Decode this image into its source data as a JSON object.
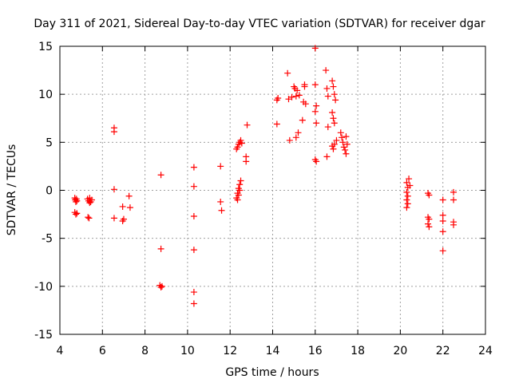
{
  "chart_data": {
    "type": "scatter",
    "title": "Day 311 of 2021, Sidereal Day-to-day VTEC variation (SDTVAR) for receiver dgar",
    "xlabel": "GPS time / hours",
    "ylabel": "SDTVAR / TECUs",
    "xlim": [
      4,
      24
    ],
    "ylim": [
      -15,
      15
    ],
    "xticks": [
      4,
      6,
      8,
      10,
      12,
      14,
      16,
      18,
      20,
      22,
      24
    ],
    "yticks": [
      -15,
      -10,
      -5,
      0,
      5,
      10,
      15
    ],
    "grid": true,
    "marker": "+",
    "color": "#ff0000",
    "series": [
      {
        "name": "SDTVAR",
        "points": [
          [
            4.7,
            -0.8
          ],
          [
            4.72,
            -1.0
          ],
          [
            4.75,
            -1.2
          ],
          [
            4.78,
            -0.9
          ],
          [
            4.8,
            -1.1
          ],
          [
            4.7,
            -2.3
          ],
          [
            4.75,
            -2.5
          ],
          [
            4.8,
            -2.4
          ],
          [
            5.3,
            -0.9
          ],
          [
            5.35,
            -1.1
          ],
          [
            5.4,
            -0.8
          ],
          [
            5.45,
            -1.2
          ],
          [
            5.5,
            -1.0
          ],
          [
            5.32,
            -2.8
          ],
          [
            5.37,
            -2.9
          ],
          [
            5.4,
            -1.3
          ],
          [
            6.55,
            6.5
          ],
          [
            6.55,
            6.1
          ],
          [
            6.55,
            0.1
          ],
          [
            6.55,
            -2.9
          ],
          [
            6.95,
            -1.7
          ],
          [
            7.0,
            -3.0
          ],
          [
            6.95,
            -3.2
          ],
          [
            7.25,
            -0.6
          ],
          [
            7.3,
            -1.8
          ],
          [
            8.75,
            1.6
          ],
          [
            8.75,
            -6.1
          ],
          [
            8.7,
            -9.9
          ],
          [
            8.75,
            -10.1
          ],
          [
            8.8,
            -10.0
          ],
          [
            10.3,
            2.4
          ],
          [
            10.3,
            0.4
          ],
          [
            10.3,
            -2.7
          ],
          [
            10.3,
            -6.2
          ],
          [
            10.3,
            -10.6
          ],
          [
            10.3,
            -11.8
          ],
          [
            11.55,
            2.5
          ],
          [
            11.55,
            -1.2
          ],
          [
            11.6,
            -2.1
          ],
          [
            12.3,
            -0.8
          ],
          [
            12.35,
            -0.3
          ],
          [
            12.4,
            0.2
          ],
          [
            12.45,
            0.6
          ],
          [
            12.5,
            1.0
          ],
          [
            12.35,
            -1.0
          ],
          [
            12.4,
            -0.5
          ],
          [
            12.45,
            0.0
          ],
          [
            12.3,
            4.3
          ],
          [
            12.35,
            4.5
          ],
          [
            12.4,
            4.8
          ],
          [
            12.45,
            5.0
          ],
          [
            12.5,
            5.2
          ],
          [
            12.55,
            4.9
          ],
          [
            12.75,
            3.5
          ],
          [
            12.75,
            3.0
          ],
          [
            12.8,
            6.8
          ],
          [
            14.2,
            6.9
          ],
          [
            14.2,
            9.4
          ],
          [
            14.25,
            9.6
          ],
          [
            14.7,
            12.2
          ],
          [
            14.75,
            9.5
          ],
          [
            14.8,
            5.2
          ],
          [
            14.9,
            9.7
          ],
          [
            15.0,
            10.8
          ],
          [
            15.05,
            10.6
          ],
          [
            15.1,
            9.8
          ],
          [
            15.1,
            5.5
          ],
          [
            15.15,
            10.4
          ],
          [
            15.2,
            6.0
          ],
          [
            15.25,
            9.9
          ],
          [
            15.4,
            7.3
          ],
          [
            15.45,
            9.2
          ],
          [
            15.5,
            10.8
          ],
          [
            15.5,
            11.0
          ],
          [
            15.55,
            9.0
          ],
          [
            16.0,
            14.8
          ],
          [
            16.0,
            11.0
          ],
          [
            16.05,
            8.8
          ],
          [
            16.05,
            7.0
          ],
          [
            16.0,
            3.2
          ],
          [
            16.05,
            3.0
          ],
          [
            16.0,
            8.2
          ],
          [
            16.5,
            12.5
          ],
          [
            16.55,
            10.6
          ],
          [
            16.6,
            6.6
          ],
          [
            16.55,
            3.5
          ],
          [
            16.6,
            9.8
          ],
          [
            16.8,
            11.4
          ],
          [
            16.85,
            10.8
          ],
          [
            16.9,
            10.0
          ],
          [
            16.95,
            9.4
          ],
          [
            16.8,
            8.1
          ],
          [
            16.85,
            7.5
          ],
          [
            16.9,
            7.0
          ],
          [
            16.8,
            4.6
          ],
          [
            16.85,
            4.3
          ],
          [
            16.9,
            4.8
          ],
          [
            17.0,
            5.2
          ],
          [
            17.2,
            6.0
          ],
          [
            17.25,
            5.5
          ],
          [
            17.3,
            5.0
          ],
          [
            17.35,
            4.5
          ],
          [
            17.4,
            4.2
          ],
          [
            17.45,
            3.8
          ],
          [
            17.5,
            4.8
          ],
          [
            17.45,
            5.6
          ],
          [
            20.3,
            0.8
          ],
          [
            20.35,
            0.3
          ],
          [
            20.3,
            -0.2
          ],
          [
            20.35,
            -0.6
          ],
          [
            20.3,
            -1.0
          ],
          [
            20.35,
            -1.4
          ],
          [
            20.3,
            -1.8
          ],
          [
            20.4,
            1.2
          ],
          [
            20.45,
            0.5
          ],
          [
            21.3,
            -0.3
          ],
          [
            21.35,
            -0.5
          ],
          [
            21.3,
            -2.8
          ],
          [
            21.35,
            -3.0
          ],
          [
            21.3,
            -3.5
          ],
          [
            21.35,
            -3.8
          ],
          [
            22.0,
            -1.0
          ],
          [
            22.0,
            -2.6
          ],
          [
            22.0,
            -3.2
          ],
          [
            22.0,
            -4.3
          ],
          [
            22.0,
            -6.3
          ],
          [
            22.5,
            -0.2
          ],
          [
            22.5,
            -1.0
          ],
          [
            22.5,
            -3.3
          ],
          [
            22.5,
            -3.6
          ]
        ]
      }
    ]
  }
}
